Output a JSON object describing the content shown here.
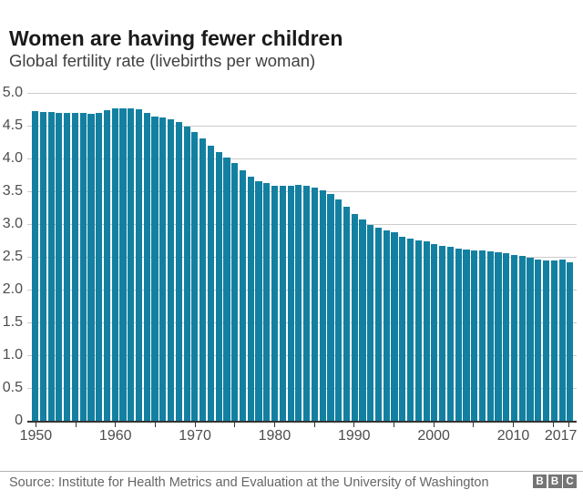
{
  "header": {
    "title": "Women are having fewer children",
    "subtitle": "Global fertility rate (livebirths per woman)"
  },
  "chart_data": {
    "type": "bar",
    "title": "Women are having fewer children",
    "subtitle": "Global fertility rate (livebirths per woman)",
    "xlabel": "",
    "ylabel": "livebirths per woman",
    "ylim": [
      0,
      5
    ],
    "grid": true,
    "bar_color": "#1380a1",
    "yticks": [
      0,
      0.5,
      1.0,
      1.5,
      2.0,
      2.5,
      3.0,
      3.5,
      4.0,
      4.5,
      5.0
    ],
    "ytick_labels": [
      "0",
      "0.5",
      "1.0",
      "1.5",
      "2.0",
      "2.5",
      "3.0",
      "3.5",
      "4.0",
      "4.5",
      "5.0"
    ],
    "xticks_minor": [
      1950,
      1955,
      1960,
      1965,
      1970,
      1975,
      1980,
      1985,
      1990,
      1995,
      2000,
      2005,
      2010,
      2015,
      2017
    ],
    "xticks_labeled": [
      1950,
      1960,
      1970,
      1980,
      1990,
      2000,
      2010,
      2017
    ],
    "years": [
      1950,
      1951,
      1952,
      1953,
      1954,
      1955,
      1956,
      1957,
      1958,
      1959,
      1960,
      1961,
      1962,
      1963,
      1964,
      1965,
      1966,
      1967,
      1968,
      1969,
      1970,
      1971,
      1972,
      1973,
      1974,
      1975,
      1976,
      1977,
      1978,
      1979,
      1980,
      1981,
      1982,
      1983,
      1984,
      1985,
      1986,
      1987,
      1988,
      1989,
      1990,
      1991,
      1992,
      1993,
      1994,
      1995,
      1996,
      1997,
      1998,
      1999,
      2000,
      2001,
      2002,
      2003,
      2004,
      2005,
      2006,
      2007,
      2008,
      2009,
      2010,
      2011,
      2012,
      2013,
      2014,
      2015,
      2016,
      2017
    ],
    "values": [
      4.72,
      4.71,
      4.71,
      4.7,
      4.7,
      4.7,
      4.69,
      4.68,
      4.7,
      4.73,
      4.76,
      4.77,
      4.77,
      4.75,
      4.7,
      4.64,
      4.62,
      4.6,
      4.56,
      4.48,
      4.4,
      4.3,
      4.2,
      4.1,
      4.01,
      3.93,
      3.82,
      3.72,
      3.65,
      3.62,
      3.59,
      3.58,
      3.59,
      3.6,
      3.59,
      3.56,
      3.51,
      3.46,
      3.38,
      3.27,
      3.15,
      3.07,
      2.99,
      2.94,
      2.9,
      2.87,
      2.81,
      2.78,
      2.75,
      2.73,
      2.7,
      2.67,
      2.65,
      2.62,
      2.61,
      2.6,
      2.6,
      2.58,
      2.57,
      2.55,
      2.53,
      2.51,
      2.49,
      2.46,
      2.44,
      2.44,
      2.46,
      2.41
    ]
  },
  "footer": {
    "source": "Source: Institute for Health Metrics and Evaluation at the University of Washington",
    "logo_letters": [
      "B",
      "B",
      "C"
    ]
  }
}
